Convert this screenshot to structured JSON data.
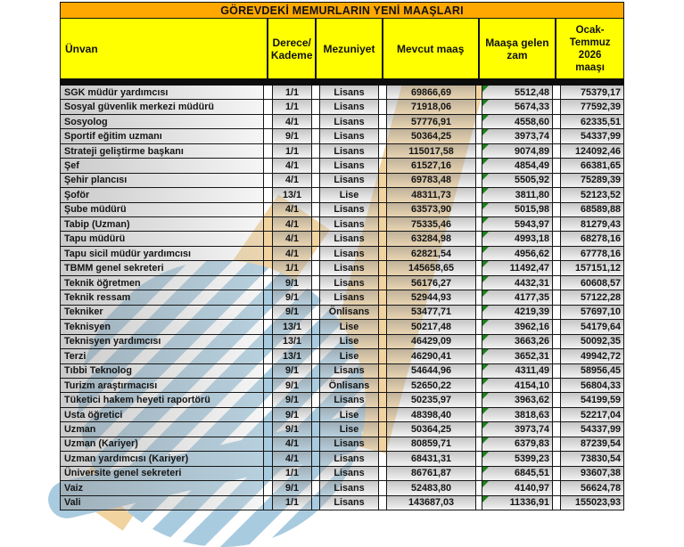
{
  "title": "GÖREVDEKİ MEMURLARIN YENİ MAAŞLARI",
  "columns": {
    "unvan": "Ünvan",
    "derece": "Derece/\nKademe",
    "mezuniyet": "Mezuniyet",
    "mevcut": "Mevcut maaş",
    "zam": "Maaşa gelen\nzam",
    "yeni": "Ocak-\nTemmuz\n2026\nmaaşı"
  },
  "colors": {
    "title_bg": "#ffa800",
    "header_bg": "#ffff00",
    "cell_gray": "#d2d2d2",
    "error_triangle_green": "#1e7e1e",
    "watermark_blue": "#a8cbdf",
    "watermark_tan": "#f1d3a0"
  },
  "rows": [
    {
      "unvan": "SGK müdür yardımcısı",
      "derece": "1/1",
      "mezuniyet": "Lisans",
      "mevcut": "69866,69",
      "zam": "5512,48",
      "yeni": "75379,17"
    },
    {
      "unvan": "Sosyal güvenlik merkezi müdürü",
      "derece": "1/1",
      "mezuniyet": "Lisans",
      "mevcut": "71918,06",
      "zam": "5674,33",
      "yeni": "77592,39"
    },
    {
      "unvan": "Sosyolog",
      "derece": "4/1",
      "mezuniyet": "Lisans",
      "mevcut": "57776,91",
      "zam": "4558,60",
      "yeni": "62335,51"
    },
    {
      "unvan": "Sportif eğitim uzmanı",
      "derece": "9/1",
      "mezuniyet": "Lisans",
      "mevcut": "50364,25",
      "zam": "3973,74",
      "yeni": "54337,99"
    },
    {
      "unvan": "Strateji geliştirme başkanı",
      "derece": "1/1",
      "mezuniyet": "Lisans",
      "mevcut": "115017,58",
      "zam": "9074,89",
      "yeni": "124092,46"
    },
    {
      "unvan": "Şef",
      "derece": "4/1",
      "mezuniyet": "Lisans",
      "mevcut": "61527,16",
      "zam": "4854,49",
      "yeni": "66381,65"
    },
    {
      "unvan": "Şehir plancısı",
      "derece": "4/1",
      "mezuniyet": "Lisans",
      "mevcut": "69783,48",
      "zam": "5505,92",
      "yeni": "75289,39"
    },
    {
      "unvan": "Şoför",
      "derece": "13/1",
      "mezuniyet": "Lise",
      "mevcut": "48311,73",
      "zam": "3811,80",
      "yeni": "52123,52"
    },
    {
      "unvan": "Şube müdürü",
      "derece": "4/1",
      "mezuniyet": "Lisans",
      "mevcut": "63573,90",
      "zam": "5015,98",
      "yeni": "68589,88"
    },
    {
      "unvan": "Tabip (Uzman)",
      "derece": "4/1",
      "mezuniyet": "Lisans",
      "mevcut": "75335,46",
      "zam": "5943,97",
      "yeni": "81279,43"
    },
    {
      "unvan": "Tapu müdürü",
      "derece": "4/1",
      "mezuniyet": "Lisans",
      "mevcut": "63284,98",
      "zam": "4993,18",
      "yeni": "68278,16"
    },
    {
      "unvan": "Tapu sicil müdür yardımcısı",
      "derece": "4/1",
      "mezuniyet": "Lisans",
      "mevcut": "62821,54",
      "zam": "4956,62",
      "yeni": "67778,16"
    },
    {
      "unvan": "TBMM genel sekreteri",
      "derece": "1/1",
      "mezuniyet": "Lisans",
      "mevcut": "145658,65",
      "zam": "11492,47",
      "yeni": "157151,12"
    },
    {
      "unvan": "Teknik öğretmen",
      "derece": "9/1",
      "mezuniyet": "Lisans",
      "mevcut": "56176,27",
      "zam": "4432,31",
      "yeni": "60608,57"
    },
    {
      "unvan": "Teknik ressam",
      "derece": "9/1",
      "mezuniyet": "Lisans",
      "mevcut": "52944,93",
      "zam": "4177,35",
      "yeni": "57122,28"
    },
    {
      "unvan": "Tekniker",
      "derece": "9/1",
      "mezuniyet": "Önlisans",
      "mevcut": "53477,71",
      "zam": "4219,39",
      "yeni": "57697,10"
    },
    {
      "unvan": "Teknisyen",
      "derece": "13/1",
      "mezuniyet": "Lise",
      "mevcut": "50217,48",
      "zam": "3962,16",
      "yeni": "54179,64"
    },
    {
      "unvan": "Teknisyen yardımcısı",
      "derece": "13/1",
      "mezuniyet": "Lise",
      "mevcut": "46429,09",
      "zam": "3663,26",
      "yeni": "50092,35"
    },
    {
      "unvan": "Terzi",
      "derece": "13/1",
      "mezuniyet": "Lise",
      "mevcut": "46290,41",
      "zam": "3652,31",
      "yeni": "49942,72"
    },
    {
      "unvan": "Tıbbi Teknolog",
      "derece": "9/1",
      "mezuniyet": "Lisans",
      "mevcut": "54644,96",
      "zam": "4311,49",
      "yeni": "58956,45"
    },
    {
      "unvan": "Turizm araştırmacısı",
      "derece": "9/1",
      "mezuniyet": "Önlisans",
      "mevcut": "52650,22",
      "zam": "4154,10",
      "yeni": "56804,33"
    },
    {
      "unvan": "Tüketici hakem heyeti raportörü",
      "derece": "9/1",
      "mezuniyet": "Lisans",
      "mevcut": "50235,97",
      "zam": "3963,62",
      "yeni": "54199,59"
    },
    {
      "unvan": "Usta öğretici",
      "derece": "9/1",
      "mezuniyet": "Lise",
      "mevcut": "48398,40",
      "zam": "3818,63",
      "yeni": "52217,04"
    },
    {
      "unvan": "Uzman",
      "derece": "9/1",
      "mezuniyet": "Lise",
      "mevcut": "50364,25",
      "zam": "3973,74",
      "yeni": "54337,99"
    },
    {
      "unvan": "Uzman (Kariyer)",
      "derece": "4/1",
      "mezuniyet": "Lisans",
      "mevcut": "80859,71",
      "zam": "6379,83",
      "yeni": "87239,54"
    },
    {
      "unvan": "Uzman yardımcısı (Kariyer)",
      "derece": "4/1",
      "mezuniyet": "Lisans",
      "mevcut": "68431,31",
      "zam": "5399,23",
      "yeni": "73830,54"
    },
    {
      "unvan": "Üniversite genel sekreteri",
      "derece": "1/1",
      "mezuniyet": "Lisans",
      "mevcut": "86761,87",
      "zam": "6845,51",
      "yeni": "93607,38"
    },
    {
      "unvan": "Vaiz",
      "derece": "9/1",
      "mezuniyet": "Lisans",
      "mevcut": "52483,80",
      "zam": "4140,97",
      "yeni": "56624,78"
    },
    {
      "unvan": "Vali",
      "derece": "1/1",
      "mezuniyet": "Lisans",
      "mevcut": "143687,03",
      "zam": "11336,91",
      "yeni": "155023,93"
    }
  ]
}
